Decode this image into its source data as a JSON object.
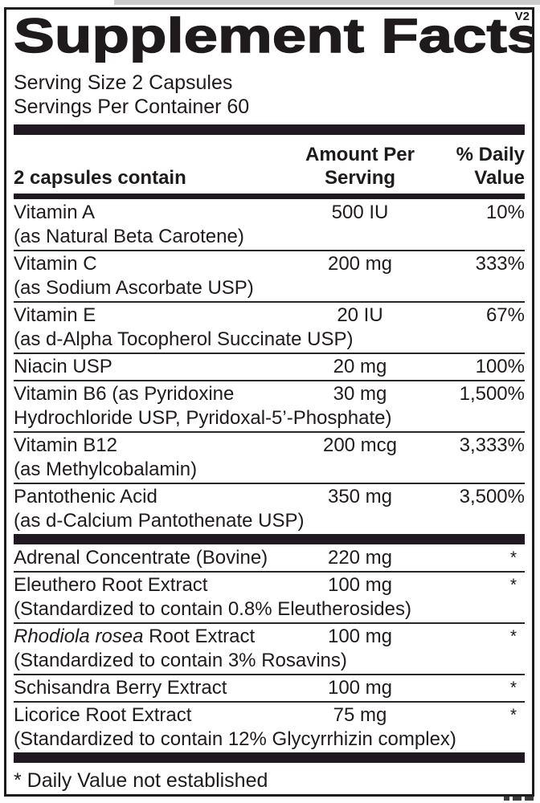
{
  "version_tag": "V2",
  "title": "Supplement Facts",
  "serving": {
    "size": "Serving Size 2 Capsules",
    "per_container": "Servings Per Container 60"
  },
  "table": {
    "col_item": "2 capsules contain",
    "col_amount": "Amount Per Serving",
    "col_dv": "% Daily Value"
  },
  "rows": [
    {
      "name": "Vitamin A",
      "detail": "(as Natural Beta Carotene)",
      "amount": "500 IU",
      "dv": "10%"
    },
    {
      "name": "Vitamin C",
      "detail": "(as Sodium Ascorbate USP)",
      "amount": "200 mg",
      "dv": "333%"
    },
    {
      "name": "Vitamin E",
      "detail": "(as d-Alpha Tocopherol Succinate USP)",
      "amount": "20 IU",
      "dv": "67%"
    },
    {
      "name": "Niacin USP",
      "amount": "20 mg",
      "dv": "100%"
    },
    {
      "name": "Vitamin B6 (as Pyridoxine",
      "detail": "Hydrochloride USP, Pyridoxal-5’-Phosphate)",
      "amount": "30 mg",
      "dv": "1,500%"
    },
    {
      "name": "Vitamin B12",
      "detail": "(as Methylcobalamin)",
      "amount": "200 mcg",
      "dv": "3,333%"
    },
    {
      "name": "Pantothenic Acid",
      "detail": "(as d-Calcium Pantothenate USP)",
      "amount": "350 mg",
      "dv": "3,500%"
    }
  ],
  "rows2": [
    {
      "name": "Adrenal Concentrate (Bovine)",
      "amount": "220 mg",
      "dv": "*"
    },
    {
      "name": "Eleuthero Root Extract",
      "detail": "(Standardized to contain 0.8% Eleutherosides)",
      "amount": "100 mg",
      "dv": "*"
    },
    {
      "name_italic": "Rhodiola rosea",
      "name": " Root Extract",
      "detail": "(Standardized to contain 3% Rosavins)",
      "amount": "100 mg",
      "dv": "*"
    },
    {
      "name": "Schisandra Berry Extract",
      "amount": "100 mg",
      "dv": "*"
    },
    {
      "name": "Licorice Root Extract",
      "detail": "(Standardized to contain 12% Glycyrrhizin complex)",
      "amount": "75 mg",
      "dv": "*"
    }
  ],
  "footnote": "* Daily Value not established",
  "colors": {
    "ink": "#1f1b1d",
    "bar": "#211921",
    "paper": "#ffffff",
    "border": "#1c1c1c"
  }
}
